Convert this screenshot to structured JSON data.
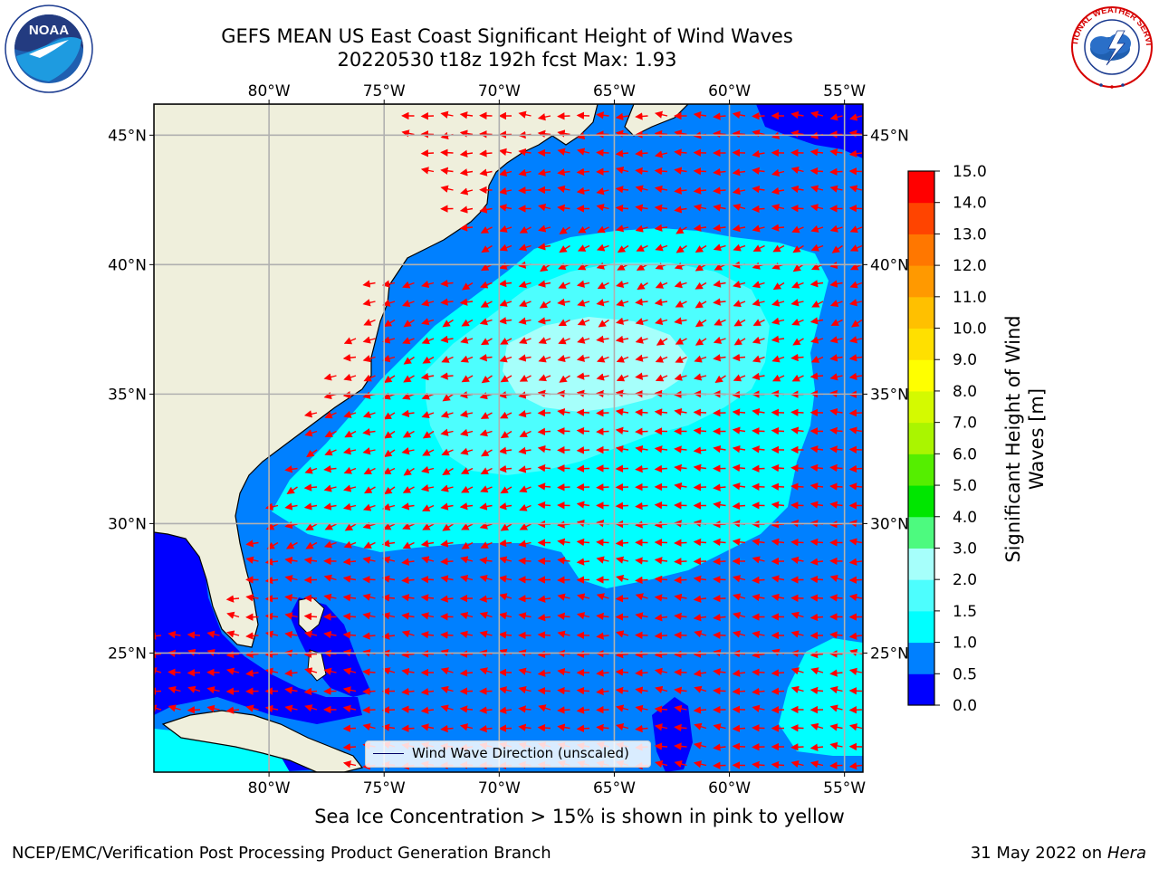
{
  "header": {
    "title_line1": "GEFS MEAN US East Coast Significant Height of Wind Waves",
    "title_line2": "20220530 t18z 192h fcst   Max: 1.93"
  },
  "logos": {
    "left": "noaa-logo",
    "left_text": "NOAA",
    "right": "nws-logo",
    "right_text": "NATIONAL WEATHER SERVICE"
  },
  "map": {
    "lon_range": [
      -85,
      -54.2
    ],
    "lat_range": [
      20.4,
      46.2
    ],
    "lon_ticks": [
      -80,
      -75,
      -70,
      -65,
      -60,
      -55
    ],
    "lon_tick_labels": [
      "80°W",
      "75°W",
      "70°W",
      "65°W",
      "60°W",
      "55°W"
    ],
    "lat_ticks": [
      25,
      30,
      35,
      40,
      45
    ],
    "lat_tick_labels": [
      "25°N",
      "30°N",
      "35°N",
      "40°N",
      "45°N"
    ],
    "gridlines": true,
    "colors": {
      "land": "#efefdc",
      "band_0_0p5": "#0000ff",
      "band_0p5_1": "#0080ff",
      "band_1_1p5": "#00ffff",
      "band_1p5_2": "#4dfefe",
      "band_2_3": "#a6fffb",
      "arrows": "#ff0000"
    },
    "wave_direction_arrows": "westward-dominant red arrows across the basin"
  },
  "legend": {
    "label": "Wind Wave Direction (unscaled)",
    "placement": "lower-center"
  },
  "colorbar": {
    "label_line1": "Significant Height of Wind",
    "label_line2": "Waves [m]",
    "tick_labels": [
      "0.0",
      "0.5",
      "1.0",
      "1.5",
      "2.0",
      "3.0",
      "4.0",
      "5.0",
      "6.0",
      "7.0",
      "8.0",
      "9.0",
      "10.0",
      "11.0",
      "12.0",
      "13.0",
      "14.0",
      "15.0"
    ],
    "colors": [
      "#0000ff",
      "#0080ff",
      "#00ffff",
      "#4dfefe",
      "#a6fffb",
      "#4dfa7f",
      "#00e600",
      "#55ee00",
      "#aaf500",
      "#d4fa00",
      "#ffff00",
      "#ffe000",
      "#ffc000",
      "#ff9900",
      "#ff7700",
      "#ff4400",
      "#ff0000"
    ]
  },
  "footer": {
    "note": "Sea Ice Concentration > 15% is shown in pink to yellow",
    "credit_left": "NCEP/EMC/Verification Post Processing Product Generation Branch",
    "credit_date": "31 May 2022 on",
    "credit_host": "Hera"
  }
}
